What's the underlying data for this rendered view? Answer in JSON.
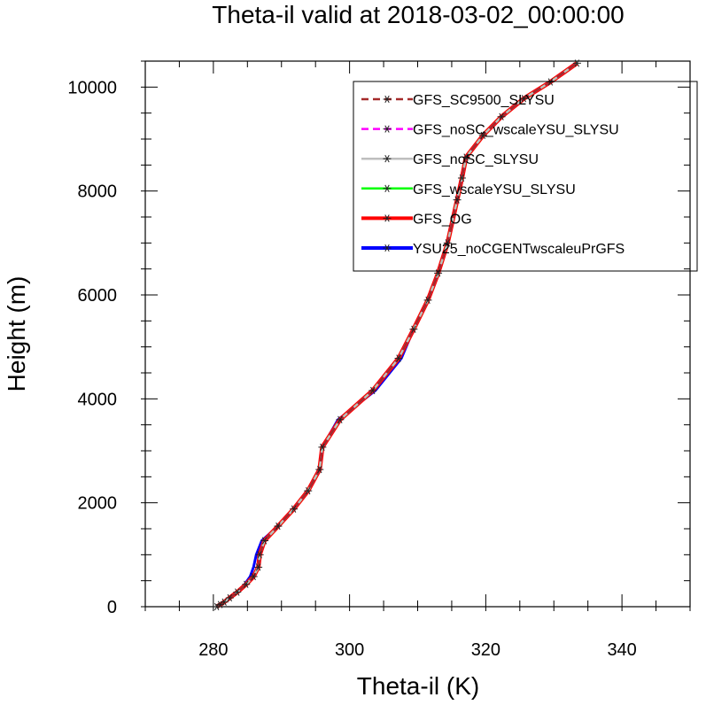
{
  "chart_data": {
    "type": "line",
    "title": "Theta-il valid at 2018-03-02_00:00:00",
    "xlabel": "Theta-il (K)",
    "ylabel": "Height (m)",
    "xlim": [
      270,
      350
    ],
    "ylim": [
      0,
      10500
    ],
    "xticks": [
      280,
      300,
      320,
      340
    ],
    "yticks": [
      0,
      2000,
      4000,
      6000,
      8000,
      10000
    ],
    "legend_position": "top-right",
    "grid": false,
    "series": [
      {
        "name": "GFS_SC9500_SLYSU",
        "color": "#a52a2a",
        "dash": "dash",
        "marker": "asterisk"
      },
      {
        "name": "GFS_noSC_wscaleYSU_SLYSU",
        "color": "#ff00ff",
        "dash": "dash",
        "marker": "asterisk"
      },
      {
        "name": "GFS_noSC_SLYSU",
        "color": "#bebebe",
        "dash": "solid",
        "marker": "asterisk"
      },
      {
        "name": "GFS_wscaleYSU_SLYSU",
        "color": "#00ff00",
        "dash": "solid",
        "marker": "asterisk"
      },
      {
        "name": "GFS_OG",
        "color": "#ff0000",
        "dash": "solid",
        "marker": "asterisk"
      },
      {
        "name": "YSU25_noCGENTwscaleuPrGFS",
        "color": "#0000ff",
        "dash": "solid",
        "marker": "asterisk"
      }
    ],
    "profile": {
      "x": [
        280.5,
        281.0,
        281.6,
        282.4,
        283.5,
        284.8,
        285.9,
        286.6,
        286.8,
        287.5,
        289.5,
        291.8,
        293.9,
        295.6,
        296.0,
        298.6,
        303.4,
        307.2,
        309.4,
        311.5,
        313.0,
        314.4,
        315.8,
        316.5,
        317.1,
        319.6,
        322.3,
        325.6,
        329.5,
        333.4
      ],
      "y": [
        0,
        40,
        90,
        170,
        280,
        430,
        580,
        760,
        1000,
        1270,
        1550,
        1880,
        2230,
        2640,
        3070,
        3600,
        4160,
        4780,
        5340,
        5900,
        6420,
        7000,
        7830,
        8250,
        8650,
        9070,
        9430,
        9780,
        10100,
        10460
      ]
    },
    "variants": {
      "YSU25_noCGENTwscaleuPrGFS": {
        "x": [
          280.5,
          281.0,
          281.6,
          282.4,
          283.5,
          284.6,
          285.4,
          285.9,
          286.3,
          287.1,
          289.5,
          291.8,
          293.9,
          295.6,
          296.0,
          298.3,
          303.8,
          307.6,
          309.4,
          311.5,
          313.0,
          314.4,
          315.8,
          316.5,
          317.1,
          319.6,
          322.3,
          325.6,
          329.5,
          333.4
        ],
        "y": [
          0,
          40,
          90,
          170,
          280,
          430,
          580,
          760,
          1000,
          1270,
          1550,
          1880,
          2230,
          2640,
          3070,
          3600,
          4160,
          4780,
          5340,
          5900,
          6420,
          7000,
          7830,
          8250,
          8650,
          9070,
          9430,
          9780,
          10100,
          10460
        ]
      }
    }
  }
}
